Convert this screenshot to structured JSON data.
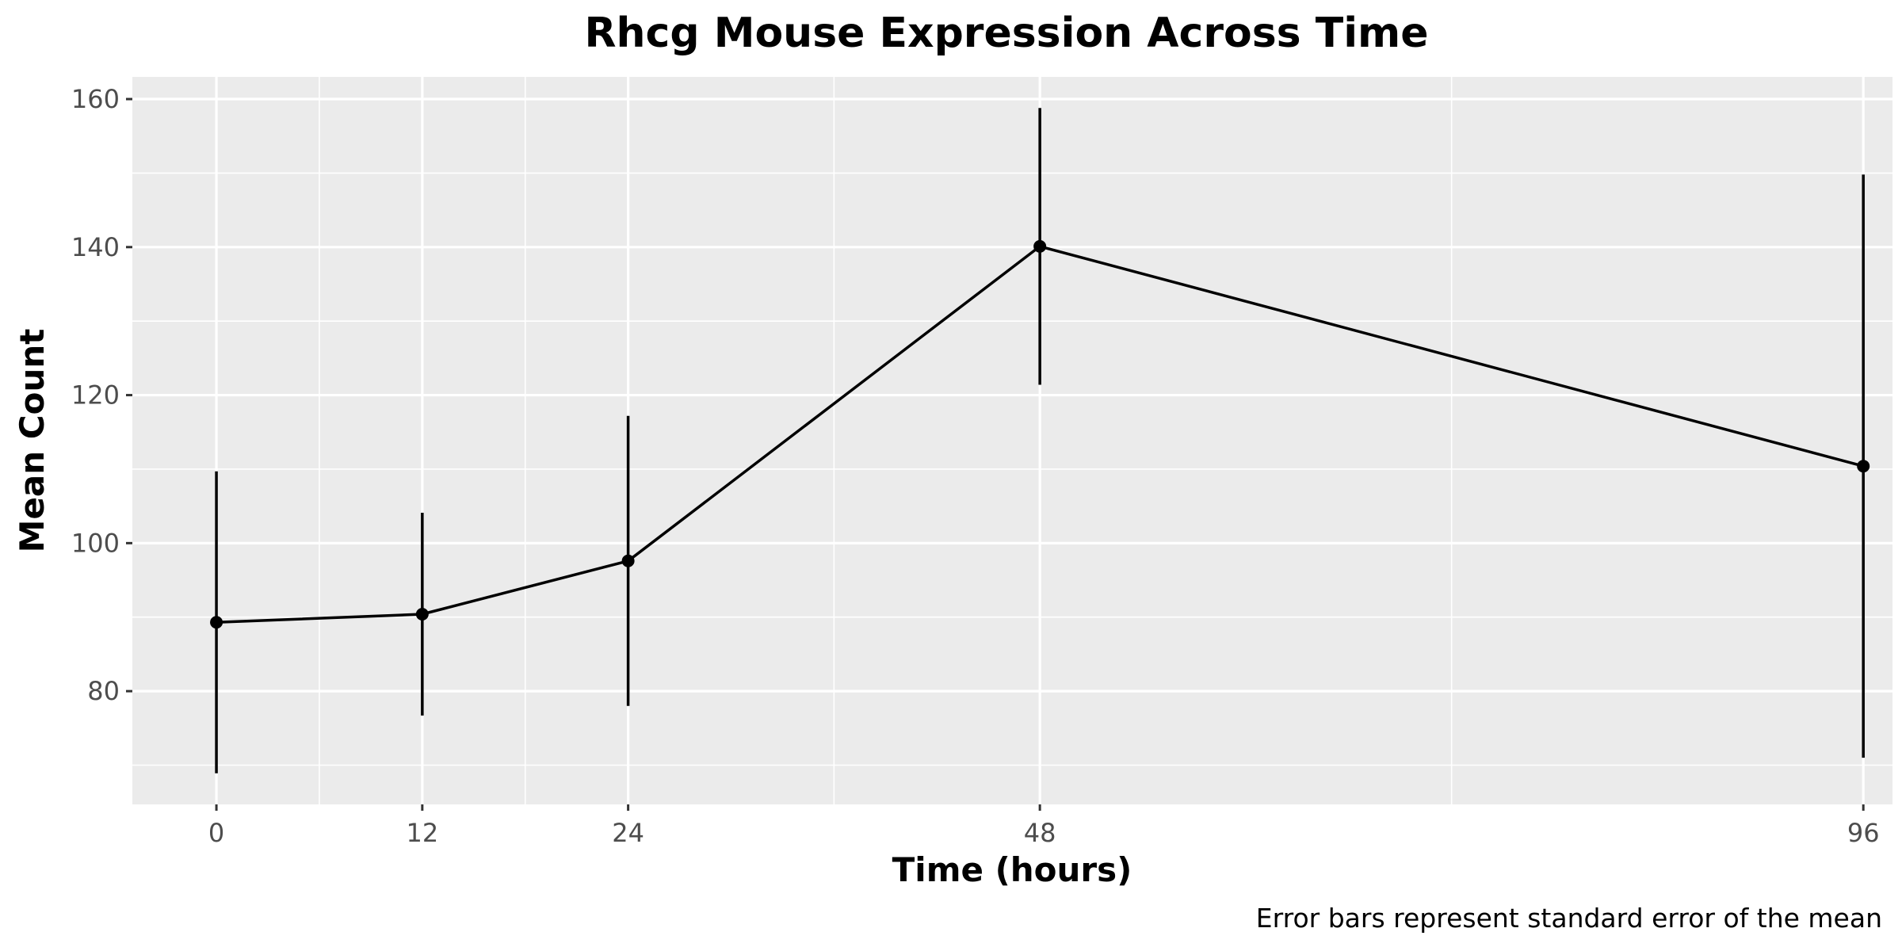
{
  "chart_data": {
    "type": "line",
    "title": "Rhcg Mouse Expression Across Time",
    "xlabel": "Time (hours)",
    "ylabel": "Mean Count",
    "caption": "Error bars represent standard error of the mean",
    "x": [
      0,
      12,
      24,
      48,
      96
    ],
    "x_ticks": [
      0,
      12,
      24,
      48,
      96
    ],
    "xlim": [
      -4.9,
      97.7
    ],
    "y_ticks": [
      80,
      100,
      120,
      140,
      160
    ],
    "ylim": [
      64.7,
      163
    ],
    "grid": true,
    "legend": "none",
    "series": [
      {
        "values": [
          89.3,
          90.4,
          97.6,
          140.1,
          110.4
        ],
        "error_low": [
          68.9,
          76.7,
          78.0,
          121.4,
          71.0
        ],
        "error_high": [
          109.7,
          104.1,
          117.2,
          158.8,
          149.8
        ]
      }
    ],
    "colors": {
      "panel": "#ebebeb",
      "grid": "#ffffff",
      "line": "#000000",
      "tick_text": "#4d4d4d"
    }
  }
}
